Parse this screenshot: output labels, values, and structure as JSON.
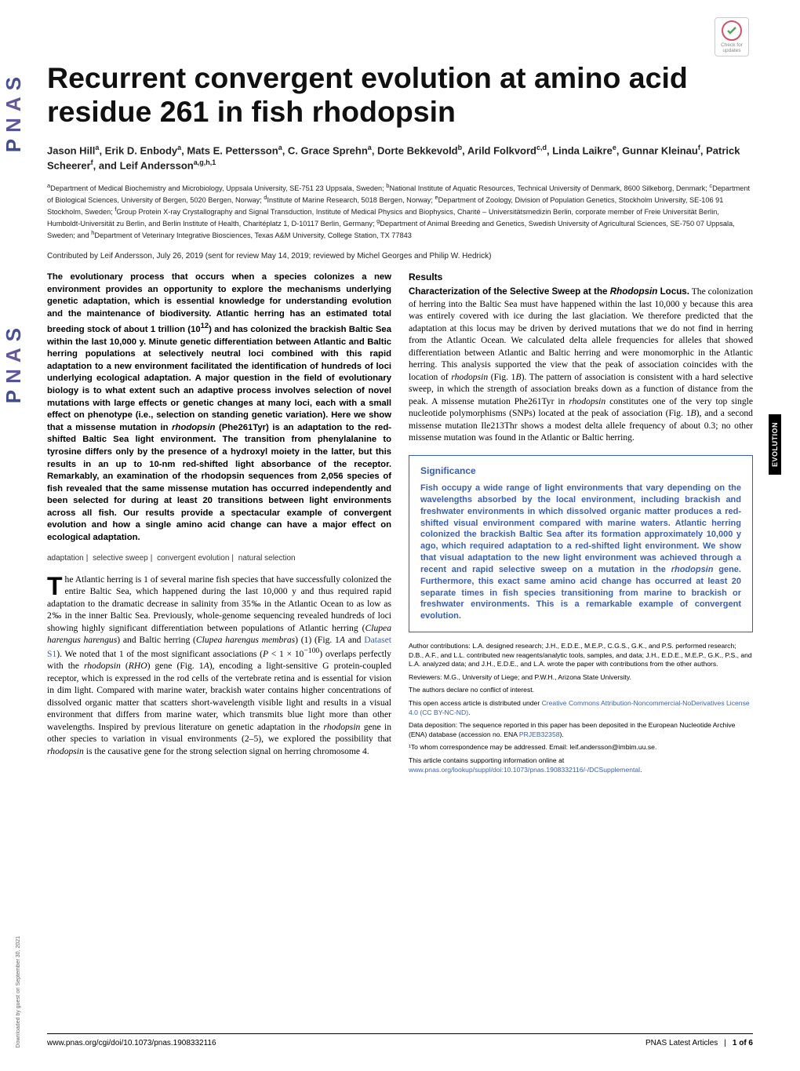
{
  "badge": {
    "line1": "Check for",
    "line2": "updates"
  },
  "section_label": "EVOLUTION",
  "sidebar": {
    "logo": "PNAS",
    "download": "Downloaded by guest on September 30, 2021"
  },
  "title": "Recurrent convergent evolution at amino acid residue 261 in fish rhodopsin",
  "authors_html": "Jason Hill<sup>a</sup>, Erik D. Enbody<sup>a</sup>, Mats E. Pettersson<sup>a</sup>, C. Grace Sprehn<sup>a</sup>, Dorte Bekkevold<sup>b</sup>, Arild Folkvord<sup>c,d</sup>, Linda Laikre<sup>e</sup>, Gunnar Kleinau<sup>f</sup>, Patrick Scheerer<sup>f</sup>, and Leif Andersson<sup>a,g,h,1</sup>",
  "affiliations_html": "<sup>a</sup>Department of Medical Biochemistry and Microbiology, Uppsala University, SE-751 23 Uppsala, Sweden; <sup>b</sup>National Institute of Aquatic Resources, Technical University of Denmark, 8600 Silkeborg, Denmark; <sup>c</sup>Department of Biological Sciences, University of Bergen, 5020 Bergen, Norway; <sup>d</sup>Institute of Marine Research, 5018 Bergen, Norway; <sup>e</sup>Department of Zoology, Division of Population Genetics, Stockholm University, SE-106 91 Stockholm, Sweden; <sup>f</sup>Group Protein X-ray Crystallography and Signal Transduction, Institute of Medical Physics and Biophysics, Charité – Universitätsmedizin Berlin, corporate member of Freie Universität Berlin, Humboldt-Universität zu Berlin, and Berlin Institute of Health, Charitéplatz 1, D-10117 Berlin, Germany; <sup>g</sup>Department of Animal Breeding and Genetics, Swedish University of Agricultural Sciences, SE-750 07 Uppsala, Sweden; and <sup>h</sup>Department of Veterinary Integrative Biosciences, Texas A&M University, College Station, TX 77843",
  "contributed": "Contributed by Leif Andersson, July 26, 2019 (sent for review May 14, 2019; reviewed by Michel Georges and Philip W. Hedrick)",
  "abstract_html": "The evolutionary process that occurs when a species colonizes a new environment provides an opportunity to explore the mechanisms underlying genetic adaptation, which is essential knowledge for understanding evolution and the maintenance of biodiversity. Atlantic herring has an estimated total breeding stock of about 1 trillion (10<sup>12</sup>) and has colonized the brackish Baltic Sea within the last 10,000 y. Minute genetic differentiation between Atlantic and Baltic herring populations at selectively neutral loci combined with this rapid adaptation to a new environment facilitated the identification of hundreds of loci underlying ecological adaptation. A major question in the field of evolutionary biology is to what extent such an adaptive process involves selection of novel mutations with large effects or genetic changes at many loci, each with a small effect on phenotype (i.e., selection on standing genetic variation). Here we show that a missense mutation in <span class=\"ital\">rhodopsin</span> (Phe261Tyr) is an adaptation to the red-shifted Baltic Sea light environment. The transition from phenylalanine to tyrosine differs only by the presence of a hydroxyl moiety in the latter, but this results in an up to 10-nm red-shifted light absorbance of the receptor. Remarkably, an examination of the rhodopsin sequences from 2,056 species of fish revealed that the same missense mutation has occurred independently and been selected for during at least 20 transitions between light environments across all fish. Our results provide a spectacular example of convergent evolution and how a single amino acid change can have a major effect on ecological adaptation.",
  "keywords": [
    "adaptation",
    "selective sweep",
    "convergent evolution",
    "natural selection"
  ],
  "intro_html": "he Atlantic herring is 1 of several marine fish species that have successfully colonized the entire Baltic Sea, which happened during the last 10,000 y and thus required rapid adaptation to the dramatic decrease in salinity from 35‰ in the Atlantic Ocean to as low as 2‰ in the inner Baltic Sea. Previously, whole-genome sequencing revealed hundreds of loci showing highly significant differentiation between populations of Atlantic herring (<span class=\"ital\">Clupea harengus harengus</span>) and Baltic herring (<span class=\"ital\">Clupea harengus membras</span>) (1) (Fig. 1<span class=\"ital\">A</span> and <a class=\"link\">Dataset S1</a>). We noted that 1 of the most significant associations (<span class=\"ital\">P</span> &lt; 1 × 10<sup>−100</sup>) overlaps perfectly with the <span class=\"ital\">rhodopsin</span> (<span class=\"ital\">RHO</span>) gene (Fig. 1<span class=\"ital\">A</span>), encoding a light-sensitive G protein-coupled receptor, which is expressed in the rod cells of the vertebrate retina and is essential for vision in dim light. Compared with marine water, brackish water contains higher concentrations of dissolved organic matter that scatters short-wavelength visible light and results in a visual environment that differs from marine water, which transmits blue light more than other wavelengths. Inspired by previous literature on genetic adaptation in the <span class=\"ital\">rhodopsin</span> gene in other species to variation in visual environments (2–5), we explored the possibility that <span class=\"ital\">rhodopsin</span> is the causative gene for the strong selection signal on herring chromosome 4.",
  "results_head": "Results",
  "results_subhead_html": "Characterization of the Selective Sweep at the <span class=\"ital\">Rhodopsin</span> Locus.",
  "results_body_html": " The colonization of herring into the Baltic Sea must have happened within the last 10,000 y because this area was entirely covered with ice during the last glaciation. We therefore predicted that the adaptation at this locus may be driven by derived mutations that we do not find in herring from the Atlantic Ocean. We calculated delta allele frequencies for alleles that showed differentiation between Atlantic and Baltic herring and were monomorphic in the Atlantic herring. This analysis supported the view that the peak of association coincides with the location of <span class=\"ital\">rhodopsin</span> (Fig. 1<span class=\"ital\">B</span>). The pattern of association is consistent with a hard selective sweep, in which the strength of association breaks down as a function of distance from the peak. A missense mutation Phe261Tyr in <span class=\"ital\">rhodopsin</span> constitutes one of the very top single nucleotide polymorphisms (SNPs) located at the peak of association (Fig. 1<span class=\"ital\">B</span>), and a second missense mutation Ile213Thr shows a modest delta allele frequency of about 0.3; no other missense mutation was found in the Atlantic or Baltic herring.",
  "significance": {
    "title": "Significance",
    "text_html": "Fish occupy a wide range of light environments that vary depending on the wavelengths absorbed by the local environment, including brackish and freshwater environments in which dissolved organic matter produces a red-shifted visual environment compared with marine waters. Atlantic herring colonized the brackish Baltic Sea after its formation approximately 10,000 y ago, which required adaptation to a red-shifted light environment. We show that visual adaptation to the new light environment was achieved through a recent and rapid selective sweep on a mutation in the <span class=\"ital\">rhodopsin</span> gene. Furthermore, this exact same amino acid change has occurred at least 20 separate times in fish species transitioning from marine to brackish or freshwater environments. This is a remarkable example of convergent evolution."
  },
  "footnotes": {
    "contributions": "Author contributions: L.A. designed research; J.H., E.D.E., M.E.P., C.G.S., G.K., and P.S. performed research; D.B., A.F., and L.L. contributed new reagents/analytic tools, samples, and data; J.H., E.D.E., M.E.P., G.K., P.S., and L.A. analyzed data; and J.H., E.D.E., and L.A. wrote the paper with contributions from the other authors.",
    "reviewers": "Reviewers: M.G., University of Liege; and P.W.H., Arizona State University.",
    "conflict": "The authors declare no conflict of interest.",
    "license_html": "This open access article is distributed under <a class=\"link\">Creative Commons Attribution-Noncommercial-NoDerivatives License 4.0 (CC BY-NC-ND)</a>.",
    "data_html": "Data deposition: The sequence reported in this paper has been deposited in the European Nucleotide Archive (ENA) database (accession no. ENA <a class=\"link\">PRJEB32358</a>).",
    "corresponding": "¹To whom correspondence may be addressed. Email: leif.andersson@imbim.uu.se.",
    "suppl_html": "This article contains supporting information online at <a class=\"link\">www.pnas.org/lookup/suppl/doi:10.1073/pnas.1908332116/-/DCSupplemental</a>."
  },
  "footer": {
    "doi": "www.pnas.org/cgi/doi/10.1073/pnas.1908332116",
    "journal": "PNAS Latest Articles",
    "page": "1 of 6"
  }
}
